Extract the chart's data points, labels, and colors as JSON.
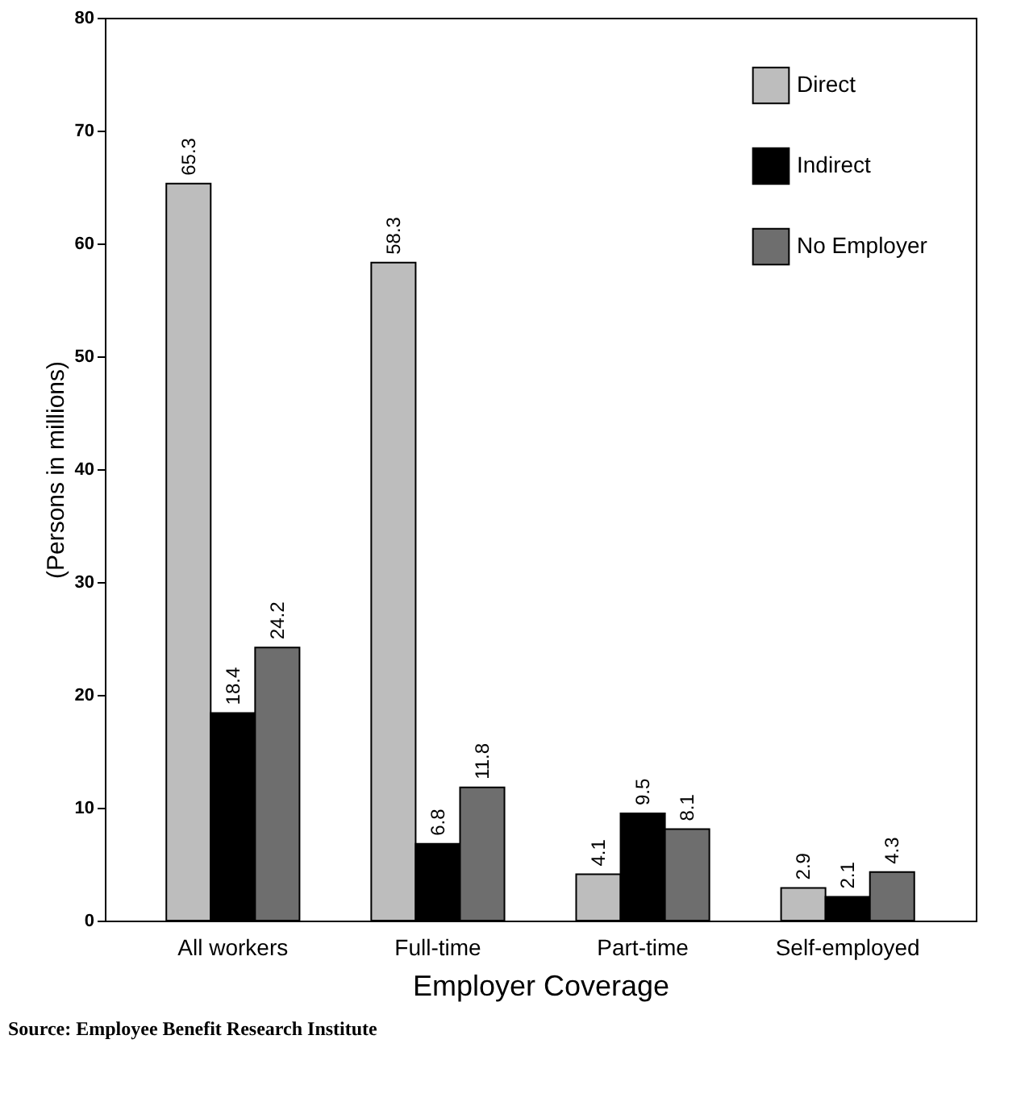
{
  "chart_data": {
    "type": "bar",
    "xlabel": "Employer Coverage",
    "ylabel": "(Persons in millions)",
    "categories": [
      "All workers",
      "Full-time",
      "Part-time",
      "Self-employed"
    ],
    "series": [
      {
        "name": "Direct",
        "color": "#bdbdbd",
        "values": [
          65.3,
          58.3,
          4.1,
          2.9
        ]
      },
      {
        "name": "Indirect",
        "color": "#000000",
        "values": [
          18.4,
          6.8,
          9.5,
          2.1
        ]
      },
      {
        "name": "No Employer",
        "color": "#6e6e6e",
        "values": [
          24.2,
          11.8,
          8.1,
          4.3
        ]
      }
    ],
    "ylim": [
      0,
      80
    ],
    "yticks": [
      0,
      10,
      20,
      30,
      40,
      50,
      60,
      70,
      80
    ],
    "data_labels": true,
    "legend": "top right",
    "grid": false,
    "annotations": [
      "Source:  Employee Benefit Research Institute"
    ]
  }
}
